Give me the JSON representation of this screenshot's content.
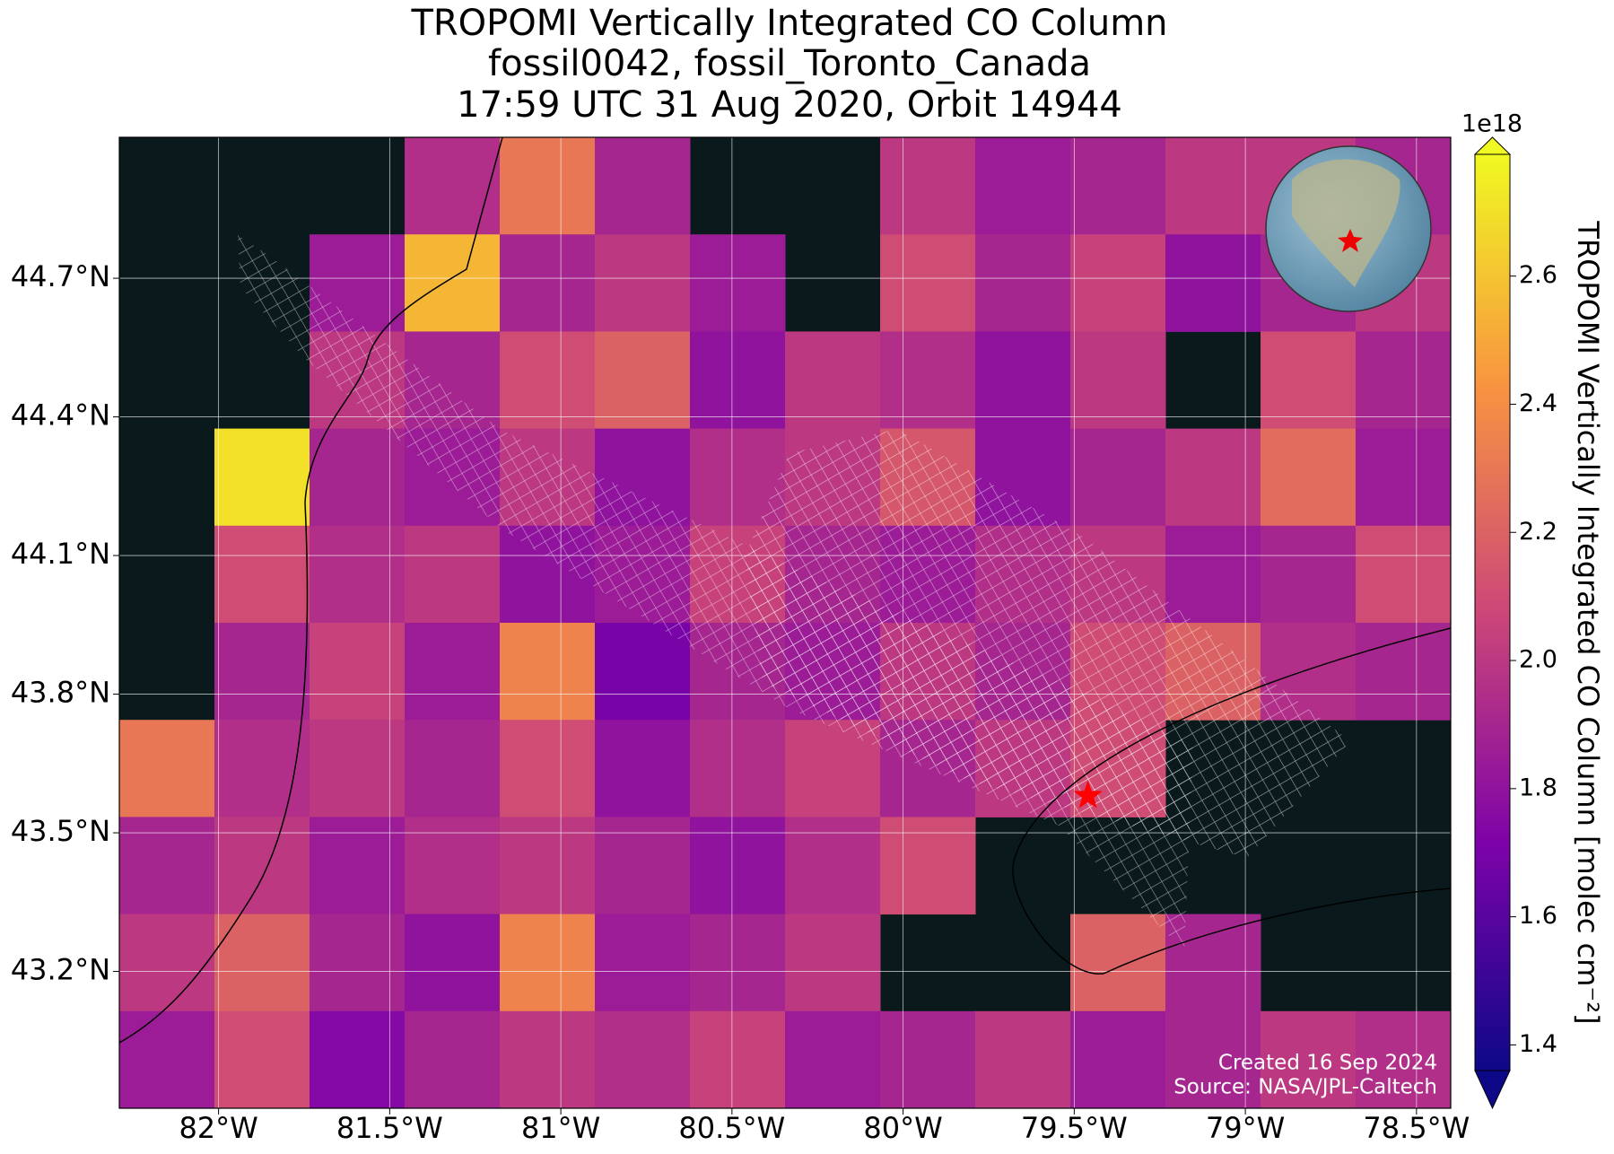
{
  "chart_data": {
    "type": "heatmap",
    "title_lines": [
      "TROPOMI Vertically Integrated CO Column",
      "fossil0042, fossil_Toronto_Canada",
      "17:59 UTC 31 Aug 2020, Orbit 14944"
    ],
    "xlim": [
      -82.29,
      -78.4
    ],
    "ylim": [
      42.904,
      45.005
    ],
    "xticks": [
      {
        "value": -82,
        "label": "82°W"
      },
      {
        "value": -81.5,
        "label": "81.5°W"
      },
      {
        "value": -81,
        "label": "81°W"
      },
      {
        "value": -80.5,
        "label": "80.5°W"
      },
      {
        "value": -80,
        "label": "80°W"
      },
      {
        "value": -79.5,
        "label": "79.5°W"
      },
      {
        "value": -79,
        "label": "79°W"
      },
      {
        "value": -78.5,
        "label": "78.5°W"
      }
    ],
    "yticks": [
      {
        "value": 43.2,
        "label": "43.2°N"
      },
      {
        "value": 43.5,
        "label": "43.5°N"
      },
      {
        "value": 43.8,
        "label": "43.8°N"
      },
      {
        "value": 44.1,
        "label": "44.1°N"
      },
      {
        "value": 44.4,
        "label": "44.4°N"
      },
      {
        "value": 44.7,
        "label": "44.7°N"
      }
    ],
    "grid": true,
    "values": [
      [
        null,
        null,
        null,
        1.95,
        2.3,
        1.9,
        null,
        null,
        2.0,
        1.85,
        1.9,
        2.0,
        2.0,
        1.9
      ],
      [
        null,
        null,
        1.85,
        2.55,
        1.9,
        2.0,
        1.85,
        null,
        2.1,
        1.9,
        2.05,
        1.8,
        1.9,
        2.0
      ],
      [
        null,
        null,
        2.0,
        1.9,
        2.1,
        2.2,
        1.8,
        2.0,
        1.95,
        1.8,
        2.0,
        null,
        2.1,
        1.9
      ],
      [
        null,
        2.7,
        1.9,
        1.85,
        2.0,
        1.8,
        1.95,
        2.0,
        2.15,
        1.8,
        1.9,
        2.0,
        2.25,
        1.85
      ],
      [
        null,
        2.1,
        1.95,
        2.0,
        1.8,
        1.85,
        2.05,
        1.9,
        1.85,
        1.95,
        2.0,
        1.85,
        1.9,
        2.1
      ],
      [
        null,
        1.9,
        2.05,
        1.85,
        2.35,
        1.7,
        1.9,
        1.85,
        2.0,
        1.9,
        2.1,
        2.2,
        1.95,
        1.9
      ],
      [
        2.3,
        1.95,
        2.0,
        1.9,
        2.1,
        1.8,
        1.95,
        2.05,
        1.9,
        2.0,
        2.1,
        null,
        null,
        null
      ],
      [
        1.9,
        2.0,
        1.85,
        1.95,
        2.0,
        1.9,
        1.8,
        1.95,
        2.1,
        null,
        null,
        null,
        null,
        null
      ],
      [
        2.0,
        2.2,
        1.9,
        1.8,
        2.35,
        1.85,
        1.9,
        2.0,
        null,
        null,
        2.2,
        1.9,
        null,
        null
      ],
      [
        1.85,
        2.1,
        1.75,
        1.9,
        2.0,
        1.95,
        2.05,
        1.85,
        1.9,
        2.0,
        1.85,
        1.9,
        2.0,
        1.95
      ]
    ],
    "site": {
      "lon": -79.46,
      "lat": 43.58
    },
    "colorbar": {
      "label": "TROPOMI Vertically Integrated CO Column [molec cm⁻²]",
      "offset_label": "1e18",
      "clim": [
        1.36,
        2.79
      ],
      "ticks": [
        1.4,
        1.6,
        1.8,
        {
          "value": 2,
          "label": "2.0"
        },
        2.2,
        2.4,
        2.6
      ]
    },
    "footer": [
      "Created 16 Sep 2024",
      "Source: NASA/JPL-Caltech"
    ]
  }
}
